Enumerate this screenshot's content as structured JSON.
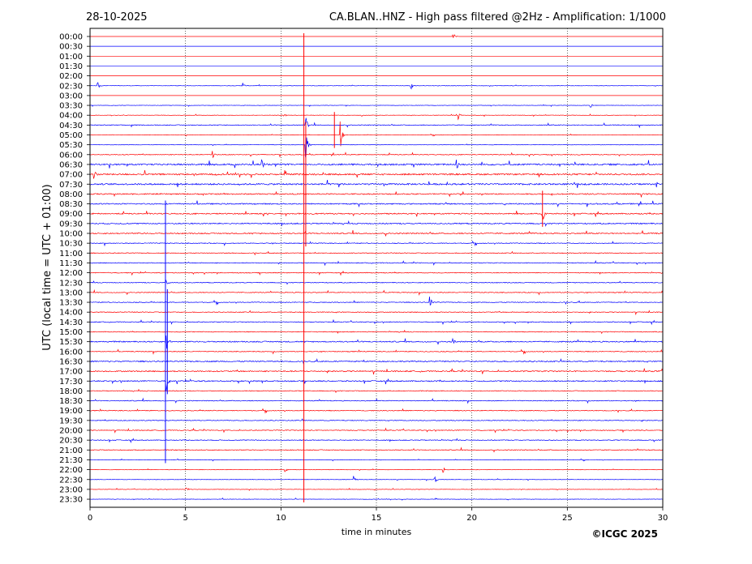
{
  "header": {
    "date": "28-10-2025",
    "title": "CA.BLAN..HNZ - High pass filtered @2Hz - Amplification: 1/1000"
  },
  "footer": {
    "copyright": "©ICGC 2025"
  },
  "chart_data": {
    "type": "line",
    "title": "CA.BLAN..HNZ - High pass filtered @2Hz - Amplification: 1/1000",
    "xlabel": "time in minutes",
    "ylabel": "UTC (local time = UTC + 01:00)",
    "xlim": [
      0,
      30
    ],
    "x_ticks": [
      0,
      5,
      10,
      15,
      20,
      25,
      30
    ],
    "x_tick_labels": [
      "0",
      "5",
      "10",
      "15",
      "20",
      "25",
      "30"
    ],
    "grid": "vertical dotted at every 5 minutes",
    "row_labels": [
      "00:00",
      "00:30",
      "01:00",
      "01:30",
      "02:00",
      "02:30",
      "03:00",
      "03:30",
      "04:00",
      "04:30",
      "05:00",
      "05:30",
      "06:00",
      "06:30",
      "07:00",
      "07:30",
      "08:00",
      "08:30",
      "09:00",
      "09:30",
      "10:00",
      "10:30",
      "11:00",
      "11:30",
      "12:00",
      "12:30",
      "13:00",
      "13:30",
      "14:00",
      "14:30",
      "15:00",
      "15:30",
      "16:00",
      "16:30",
      "17:00",
      "17:30",
      "18:00",
      "18:30",
      "19:00",
      "19:30",
      "20:00",
      "20:30",
      "21:00",
      "21:30",
      "22:00",
      "22:30",
      "23:00",
      "23:30"
    ],
    "trace_colors": [
      "#ff0000",
      "#0000ff"
    ],
    "noise_level": [
      0,
      0,
      0,
      0,
      0,
      1,
      0,
      1,
      1,
      2,
      1,
      1,
      2,
      4,
      4,
      4,
      3,
      3,
      3,
      3,
      3,
      2,
      2,
      2,
      2,
      2,
      2,
      2,
      2,
      2,
      2,
      3,
      2,
      3,
      3,
      3,
      2,
      2,
      2,
      2,
      2,
      2,
      2,
      1,
      1,
      1,
      1,
      1
    ],
    "events": [
      {
        "row": 0,
        "minute": 19.0,
        "amplitude": 6
      },
      {
        "row": 5,
        "minute": 0.4,
        "amplitude": 6
      },
      {
        "row": 5,
        "minute": 8.0,
        "amplitude": 5
      },
      {
        "row": 5,
        "minute": 16.8,
        "amplitude": 6
      },
      {
        "row": 7,
        "minute": 26.2,
        "amplitude": 4
      },
      {
        "row": 8,
        "minute": 10.1,
        "amplitude": 5
      },
      {
        "row": 8,
        "minute": 19.3,
        "amplitude": 5
      },
      {
        "row": 9,
        "minute": 11.3,
        "amplitude": 14
      },
      {
        "row": 10,
        "minute": 13.1,
        "amplitude": 22
      },
      {
        "row": 11,
        "minute": 11.3,
        "amplitude": 20
      },
      {
        "row": 12,
        "minute": 6.4,
        "amplitude": 6
      },
      {
        "row": 13,
        "minute": 9.0,
        "amplitude": 7
      },
      {
        "row": 13,
        "minute": 19.2,
        "amplitude": 7
      },
      {
        "row": 14,
        "minute": 0.2,
        "amplitude": 6
      },
      {
        "row": 18,
        "minute": 23.7,
        "amplitude": 14
      },
      {
        "row": 25,
        "minute": 4.0,
        "amplitude": 10
      },
      {
        "row": 27,
        "minute": 17.8,
        "amplitude": 10
      },
      {
        "row": 31,
        "minute": 4.0,
        "amplitude": 14
      },
      {
        "row": 31,
        "minute": 19.0,
        "amplitude": 6
      },
      {
        "row": 35,
        "minute": 4.0,
        "amplitude": 12
      },
      {
        "row": 44,
        "minute": 10.2,
        "amplitude": 6
      },
      {
        "row": 44,
        "minute": 18.5,
        "amplitude": 5
      },
      {
        "row": 45,
        "minute": 18.0,
        "amplitude": 10
      },
      {
        "row": 45,
        "minute": 13.8,
        "amplitude": 5
      },
      {
        "row": 46,
        "minute": 5.0,
        "amplitude": 7
      }
    ],
    "spans": [
      {
        "minute": 11.2,
        "from_row": 0,
        "to_row": 47,
        "color": "#ff0000"
      },
      {
        "minute": 11.3,
        "from_row": 9,
        "to_row": 21,
        "color": "#ff0000"
      },
      {
        "minute": 3.95,
        "from_row": 17,
        "to_row": 43,
        "color": "#0000ff"
      },
      {
        "minute": 4.05,
        "from_row": 26,
        "to_row": 36,
        "color": "#0000ff"
      },
      {
        "minute": 12.8,
        "from_row": 8,
        "to_row": 11,
        "color": "#ff0000"
      },
      {
        "minute": 23.7,
        "from_row": 16,
        "to_row": 19,
        "color": "#ff0000"
      }
    ]
  }
}
